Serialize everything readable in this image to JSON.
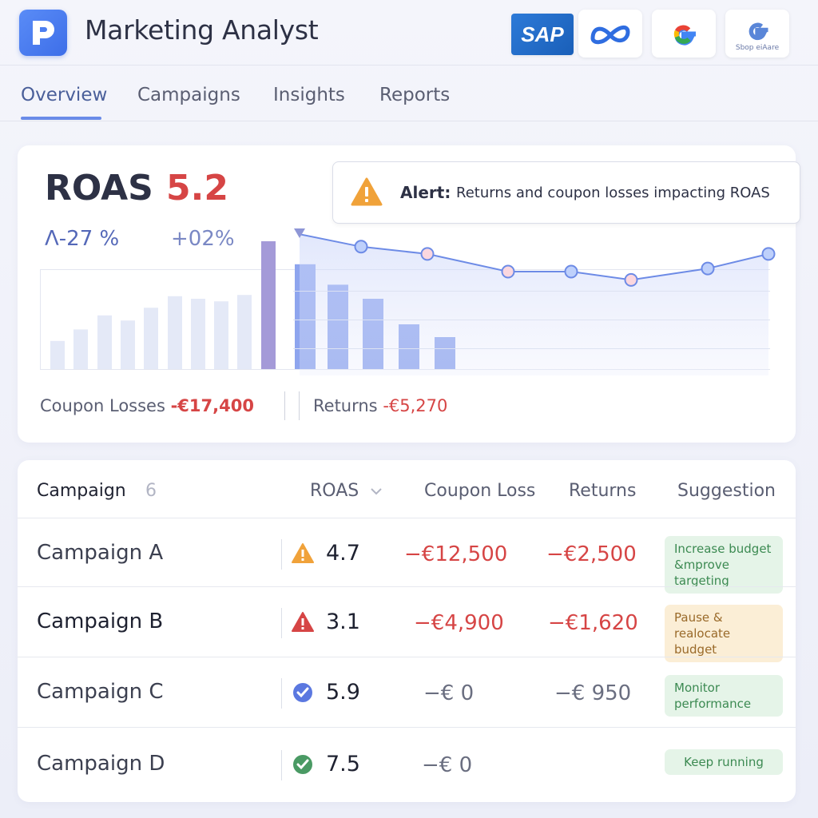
{
  "header": {
    "title": "Marketing Analyst",
    "logo_icon": "p-app-icon",
    "brands": [
      {
        "name": "sap-logo",
        "text": "SAP"
      },
      {
        "name": "meta-logo",
        "text": ""
      },
      {
        "name": "google-logo",
        "text": ""
      },
      {
        "name": "google-shop-logo",
        "text": "Sbop eiAare"
      }
    ]
  },
  "tabs": [
    {
      "label": "Overview",
      "active": true
    },
    {
      "label": "Campaigns",
      "active": false
    },
    {
      "label": "Insights",
      "active": false
    },
    {
      "label": "Reports",
      "active": false
    }
  ],
  "summary": {
    "roas_label": "ROAS",
    "roas_value": "5.2",
    "delta_1": "Λ-27 %",
    "delta_2": "+02%",
    "alert_label": "Alert:",
    "alert_text": "Returns and coupon losses impacting ROAS",
    "coupon_label": "Coupon Losses",
    "coupon_value": "-€17,400",
    "returns_label": "Returns",
    "returns_value": "-€5,270"
  },
  "chart_data": {
    "type": "bar",
    "bars": [
      0.22,
      0.31,
      0.42,
      0.38,
      0.48,
      0.57,
      0.55,
      0.53,
      0.58,
      1.0,
      0.82,
      0.66,
      0.55,
      0.35,
      0.25
    ],
    "highlighted_bar_index": 9,
    "line": [
      0.96,
      0.84,
      0.77,
      0.6,
      0.6,
      0.52,
      0.63,
      0.77
    ],
    "colors": {
      "faint_bar": "#e4e9f7",
      "highlight_bar": "#a49ad8",
      "blue_bar": "#8ea5ee",
      "line": "#6d8be6",
      "point_fill": "#bed0fb",
      "point_pink": "#fbd7df"
    }
  },
  "table": {
    "headers": {
      "campaign": "Campaign",
      "count": "6",
      "roas": "ROAS",
      "coupon_loss": "Coupon Loss",
      "returns": "Returns",
      "suggestion": "Suggestion"
    },
    "rows": [
      {
        "name": "Campaign A",
        "icon": "warning-orange-icon",
        "roas": "4.7",
        "coupon_loss": "−€12,500",
        "returns": "−€2,500",
        "suggestion": "Increase budget &mprove targeting",
        "style": "green"
      },
      {
        "name": "Campaign B",
        "icon": "warning-red-icon",
        "roas": "3.1",
        "coupon_loss": "−€4,900",
        "returns": "−€1,620",
        "suggestion": "Pause & realocate budget",
        "style": "yellow"
      },
      {
        "name": "Campaign C",
        "icon": "check-blue-icon",
        "roas": "5.9",
        "coupon_loss": "−€ 0",
        "returns": "−€ 950",
        "suggestion": "Monitor performance",
        "style": "green"
      },
      {
        "name": "Campaign D",
        "icon": "check-green-icon",
        "roas": "7.5",
        "coupon_loss": "−€ 0",
        "returns": "",
        "suggestion": "Keep running",
        "style": "green"
      }
    ]
  }
}
